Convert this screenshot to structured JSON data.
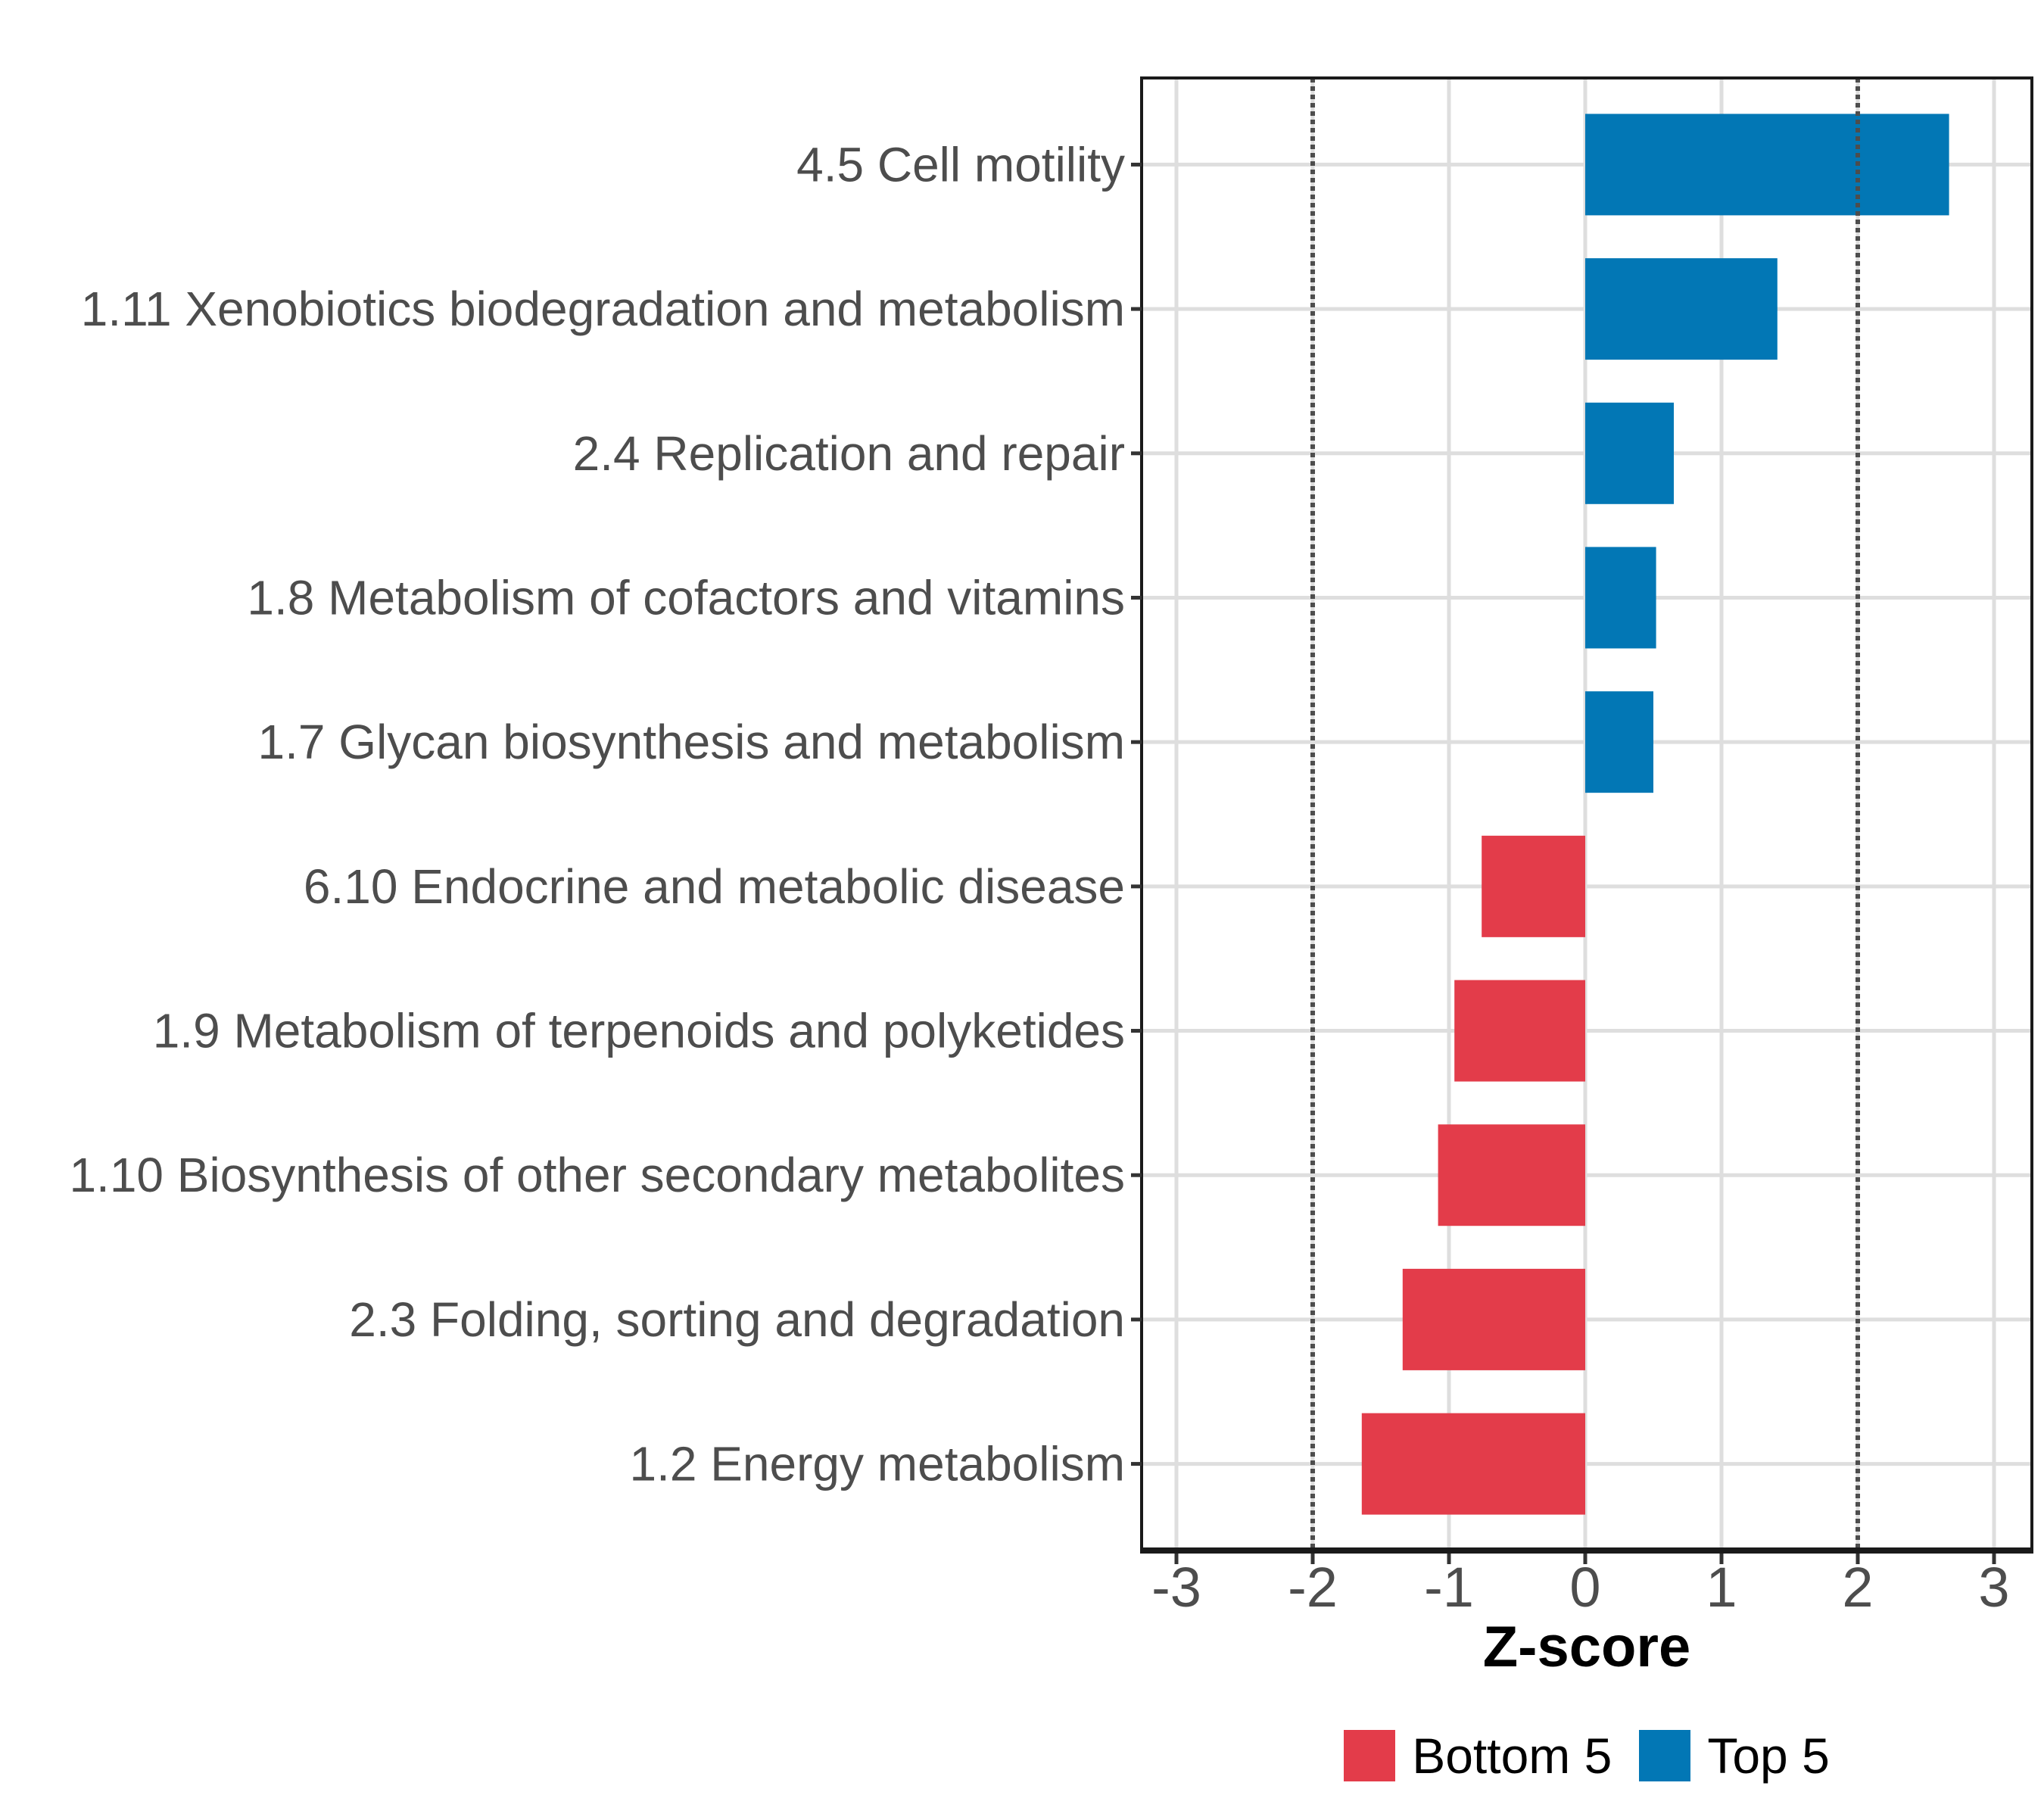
{
  "chart_data": {
    "type": "bar",
    "orientation": "horizontal",
    "title": "",
    "xlabel": "Z-score",
    "ylabel": "",
    "categories": [
      "4.5 Cell motility",
      "1.11 Xenobiotics biodegradation and metabolism",
      "2.4 Replication and repair",
      "1.8 Metabolism of cofactors and vitamins",
      "1.7 Glycan biosynthesis and metabolism",
      "6.10 Endocrine and metabolic disease",
      "1.9 Metabolism of terpenoids and polyketides",
      "1.10 Biosynthesis of other secondary metabolites",
      "2.3 Folding, sorting and degradation",
      "1.2 Energy metabolism"
    ],
    "values": [
      2.67,
      1.41,
      0.65,
      0.52,
      0.5,
      -0.76,
      -0.96,
      -1.08,
      -1.34,
      -1.64
    ],
    "groups": [
      "Top 5",
      "Top 5",
      "Top 5",
      "Top 5",
      "Top 5",
      "Bottom 5",
      "Bottom 5",
      "Bottom 5",
      "Bottom 5",
      "Bottom 5"
    ],
    "xlim": [
      -3.27,
      3.27
    ],
    "xticks": [
      "-3",
      "-2",
      "-1",
      "0",
      "1",
      "2",
      "3"
    ],
    "xtick_values": [
      -3,
      -2,
      -1,
      0,
      1,
      2,
      3
    ],
    "reference_lines": [
      -2,
      2
    ],
    "grid": "major",
    "legend_position": "bottom",
    "legend": [
      {
        "label": "Bottom 5",
        "color": "#E33C4A"
      },
      {
        "label": "Top 5",
        "color": "#0277B5"
      }
    ]
  },
  "style": {
    "bar_top_color": "#0277B5",
    "bar_bottom_color": "#E33C4A",
    "grid_color": "#DEDEDE",
    "refline_color": "#4D4D4D",
    "axis_text_color": "#4D4D4D",
    "tick_color": "#333333",
    "panel_border_color": "#1A1A1A",
    "background": "#FFFFFF"
  }
}
